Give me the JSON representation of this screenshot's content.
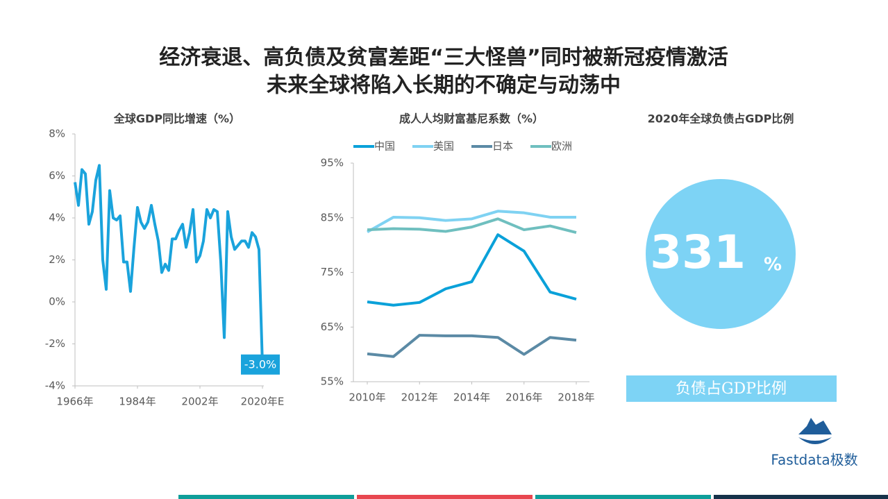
{
  "title_lines": [
    "经济衰退、高负债及贫富差距“三大怪兽”同时被新冠疫情激活",
    "未来全球将陷入长期的不确定与动荡中"
  ],
  "chart_data": [
    {
      "type": "line",
      "title": "全球GDP同比增速（%）",
      "x": [
        1966,
        1967,
        1968,
        1969,
        1970,
        1971,
        1972,
        1973,
        1974,
        1975,
        1976,
        1977,
        1978,
        1979,
        1980,
        1981,
        1982,
        1983,
        1984,
        1985,
        1986,
        1987,
        1988,
        1989,
        1990,
        1991,
        1992,
        1993,
        1994,
        1995,
        1996,
        1997,
        1998,
        1999,
        2000,
        2001,
        2002,
        2003,
        2004,
        2005,
        2006,
        2007,
        2008,
        2009,
        2010,
        2011,
        2012,
        2013,
        2014,
        2015,
        2016,
        2017,
        2018,
        2019,
        2020
      ],
      "series": [
        {
          "name": "全球GDP同比增速",
          "color": "#1aa3dc",
          "values": [
            5.7,
            4.6,
            6.3,
            6.1,
            3.7,
            4.3,
            5.8,
            6.5,
            2.0,
            0.6,
            5.3,
            4.0,
            3.9,
            4.1,
            1.9,
            1.9,
            0.5,
            2.6,
            4.5,
            3.8,
            3.5,
            3.8,
            4.6,
            3.7,
            2.9,
            1.4,
            1.8,
            1.5,
            3.0,
            3.0,
            3.4,
            3.7,
            2.6,
            3.3,
            4.4,
            1.9,
            2.2,
            2.9,
            4.4,
            4.0,
            4.4,
            4.3,
            1.9,
            -1.7,
            4.3,
            3.1,
            2.5,
            2.7,
            2.9,
            2.9,
            2.6,
            3.3,
            3.1,
            2.5,
            -3.0
          ],
          "value_labels": [
            null,
            null,
            null,
            null,
            null,
            null,
            null,
            null,
            null,
            null,
            null,
            null,
            null,
            null,
            null,
            null,
            null,
            null,
            null,
            null,
            null,
            null,
            null,
            null,
            null,
            null,
            null,
            null,
            null,
            null,
            null,
            null,
            null,
            null,
            null,
            null,
            null,
            null,
            null,
            null,
            null,
            null,
            null,
            null,
            null,
            null,
            null,
            null,
            null,
            null,
            null,
            null,
            null,
            null,
            "-3.0%"
          ]
        }
      ],
      "xlim": [
        1966,
        2020
      ],
      "xticks": [
        {
          "value": 1966,
          "label": "1966年"
        },
        {
          "value": 1984,
          "label": "1984年"
        },
        {
          "value": 2002,
          "label": "2002年"
        },
        {
          "value": 2020,
          "label": "2020年E"
        }
      ],
      "ylim": [
        -4,
        8
      ],
      "yticks": [
        {
          "value": -4,
          "label": "-4%"
        },
        {
          "value": -2,
          "label": "-2%"
        },
        {
          "value": 0,
          "label": "0%"
        },
        {
          "value": 2,
          "label": "2%"
        },
        {
          "value": 4,
          "label": "4%"
        },
        {
          "value": 6,
          "label": "6%"
        },
        {
          "value": 8,
          "label": "8%"
        }
      ],
      "grid": false,
      "legend": null
    },
    {
      "type": "line",
      "title": "成人人均财富基尼系数（%）",
      "x": [
        2010,
        2011,
        2012,
        2013,
        2014,
        2015,
        2016,
        2017,
        2018
      ],
      "series": [
        {
          "name": "中国",
          "color": "#0aa1d9",
          "values": [
            69.6,
            69.0,
            69.5,
            72.0,
            73.3,
            81.9,
            78.9,
            71.4,
            70.1
          ]
        },
        {
          "name": "美国",
          "color": "#7fd2f2",
          "values": [
            82.4,
            85.1,
            85.0,
            84.5,
            84.8,
            86.2,
            85.9,
            85.1,
            85.1
          ]
        },
        {
          "name": "日本",
          "color": "#5b8aa5",
          "values": [
            60.1,
            59.6,
            63.5,
            63.4,
            63.4,
            63.1,
            60.0,
            63.1,
            62.6
          ]
        },
        {
          "name": "欧洲",
          "color": "#6fbfbf",
          "values": [
            82.8,
            83.0,
            82.9,
            82.5,
            83.3,
            84.8,
            82.8,
            83.5,
            82.3
          ]
        }
      ],
      "xlim": [
        2010,
        2018
      ],
      "xticks": [
        {
          "value": 2010,
          "label": "2010年"
        },
        {
          "value": 2012,
          "label": "2012年"
        },
        {
          "value": 2014,
          "label": "2014年"
        },
        {
          "value": 2016,
          "label": "2016年"
        },
        {
          "value": 2018,
          "label": "2018年"
        }
      ],
      "ylim": [
        55,
        95
      ],
      "yticks": [
        {
          "value": 55,
          "label": "55%"
        },
        {
          "value": 65,
          "label": "65%"
        },
        {
          "value": 75,
          "label": "75%"
        },
        {
          "value": 85,
          "label": "85%"
        },
        {
          "value": 95,
          "label": "95%"
        }
      ],
      "grid": false,
      "legend": "top"
    },
    {
      "type": "stat",
      "title": "2020年全球负债占GDP比例",
      "value": 331,
      "unit": "%",
      "label": "负债占GDP比例",
      "color": "#7dd3f5"
    }
  ],
  "logo": "Fastdata极数"
}
